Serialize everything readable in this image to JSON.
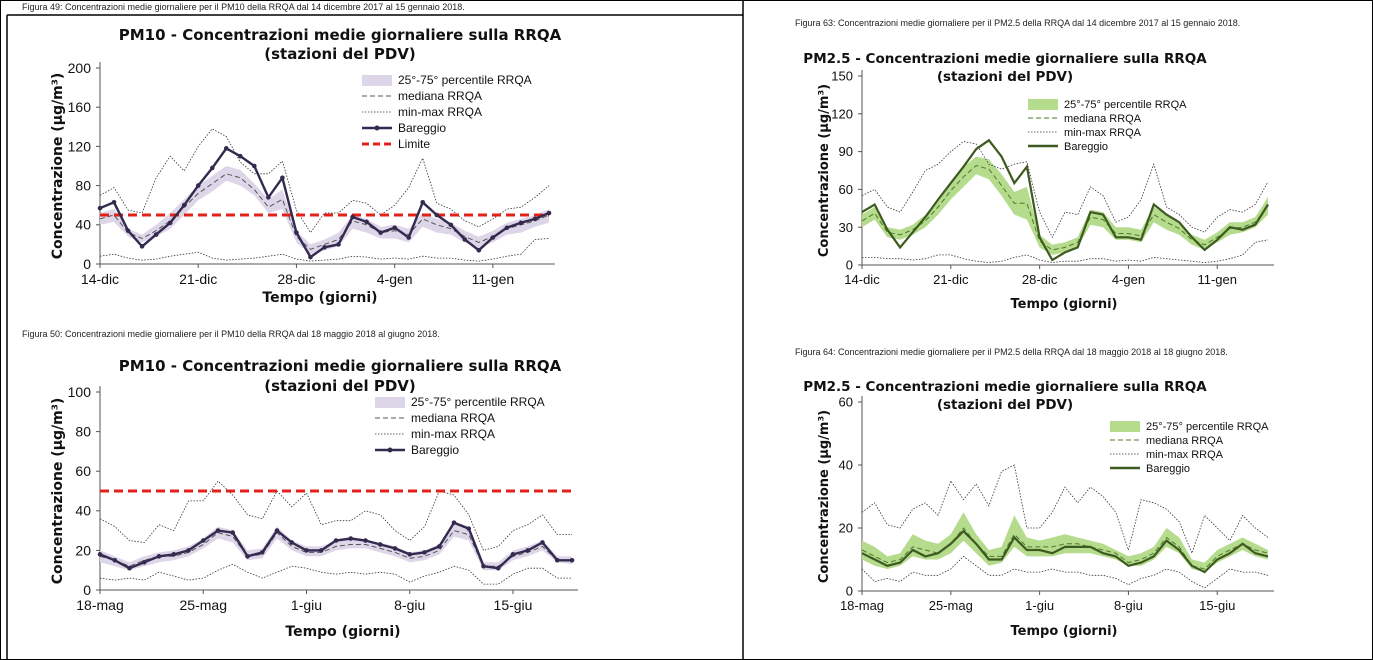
{
  "chart_data": [
    {
      "type": "line",
      "caption": "Figura 49: Concentrazioni medie giornaliere per il PM10 della RRQA dal 14 dicembre 2017 al 15 gennaio 2018.",
      "title": "PM10 - Concentrazioni medie giornaliere sulla RRQA",
      "subtitle": "(stazioni del PDV)",
      "xlabel": "Tempo (giorni)",
      "ylabel": "Concentrazione (µg/m³)",
      "ylim": [
        0,
        200
      ],
      "yticks": [
        0,
        40,
        80,
        120,
        160,
        200
      ],
      "xticks": [
        {
          "i": 0,
          "label": "14-dic"
        },
        {
          "i": 7,
          "label": "21-dic"
        },
        {
          "i": 14,
          "label": "28-dic"
        },
        {
          "i": 21,
          "label": "4-gen"
        },
        {
          "i": 28,
          "label": "11-gen"
        }
      ],
      "n": 33,
      "legend": {
        "iqr": "25°-75° percentile RRQA",
        "median": "mediana RRQA",
        "minmax": "min-max RRQA",
        "station": "Bareggio",
        "limit": "Limite"
      },
      "limit": 50,
      "colors": {
        "band": "#ddd6e8",
        "station": "#332a4f",
        "median": "#555555",
        "minmax": "#333333",
        "limit": "#e32119"
      },
      "series": {
        "Bareggio": [
          57,
          63,
          34,
          18,
          30,
          42,
          60,
          80,
          98,
          118,
          110,
          100,
          68,
          88,
          32,
          7,
          17,
          20,
          48,
          43,
          32,
          37,
          27,
          63,
          50,
          40,
          25,
          14,
          27,
          37,
          42,
          46,
          52
        ],
        "p25": [
          40,
          43,
          28,
          22,
          28,
          36,
          50,
          65,
          74,
          85,
          80,
          70,
          52,
          56,
          22,
          10,
          14,
          18,
          36,
          32,
          26,
          26,
          22,
          38,
          32,
          30,
          22,
          16,
          22,
          30,
          32,
          38,
          42
        ],
        "p75": [
          52,
          56,
          36,
          30,
          40,
          52,
          66,
          80,
          90,
          100,
          96,
          82,
          66,
          76,
          34,
          20,
          25,
          32,
          50,
          46,
          38,
          40,
          36,
          52,
          46,
          42,
          34,
          28,
          34,
          42,
          46,
          50,
          56
        ],
        "median": [
          46,
          50,
          32,
          26,
          34,
          44,
          58,
          72,
          82,
          92,
          88,
          76,
          58,
          66,
          28,
          15,
          20,
          25,
          44,
          40,
          32,
          34,
          30,
          46,
          40,
          36,
          28,
          22,
          28,
          36,
          40,
          44,
          50
        ],
        "min": [
          8,
          10,
          6,
          4,
          5,
          8,
          10,
          12,
          6,
          4,
          5,
          6,
          8,
          10,
          5,
          3,
          4,
          5,
          8,
          7,
          5,
          6,
          5,
          8,
          6,
          6,
          4,
          3,
          5,
          8,
          10,
          25,
          26
        ],
        "max": [
          70,
          78,
          55,
          52,
          88,
          110,
          95,
          120,
          138,
          130,
          104,
          92,
          92,
          105,
          55,
          32,
          52,
          52,
          65,
          62,
          50,
          60,
          78,
          108,
          62,
          56,
          44,
          38,
          46,
          56,
          58,
          68,
          80
        ]
      }
    },
    {
      "type": "line",
      "caption": "Figura 63: Concentrazioni medie giornaliere per il PM2.5 della RRQA dal 14 dicembre 2017 al 15 gennaio 2018.",
      "title": "PM2.5 - Concentrazioni medie giornaliere sulla RRQA",
      "subtitle": "(stazioni del PDV)",
      "xlabel": "Tempo (giorni)",
      "ylabel": "Concentrazione (µg/m³)",
      "ylim": [
        0,
        150
      ],
      "yticks": [
        0,
        30,
        60,
        90,
        120,
        150
      ],
      "xticks": [
        {
          "i": 0,
          "label": "14-dic"
        },
        {
          "i": 7,
          "label": "21-dic"
        },
        {
          "i": 14,
          "label": "28-dic"
        },
        {
          "i": 21,
          "label": "4-gen"
        },
        {
          "i": 28,
          "label": "11-gen"
        }
      ],
      "n": 33,
      "legend": {
        "iqr": "25°-75° percentile RRQA",
        "median": "mediana RRQA",
        "minmax": "min-max RRQA",
        "station": "Bareggio"
      },
      "colors": {
        "band": "#b5db8d",
        "station": "#3e5a20",
        "median": "#4f7a2a",
        "minmax": "#333333"
      },
      "series": {
        "Bareggio": [
          42,
          48,
          28,
          14,
          26,
          38,
          52,
          65,
          78,
          92,
          99,
          86,
          65,
          78,
          22,
          4,
          10,
          14,
          42,
          40,
          22,
          22,
          20,
          48,
          40,
          34,
          22,
          12,
          20,
          30,
          28,
          32,
          48
        ],
        "p25": [
          30,
          36,
          22,
          20,
          24,
          30,
          40,
          52,
          62,
          72,
          68,
          55,
          40,
          36,
          14,
          8,
          10,
          14,
          32,
          30,
          20,
          20,
          18,
          34,
          28,
          24,
          16,
          12,
          18,
          24,
          26,
          30,
          40
        ],
        "p75": [
          40,
          46,
          30,
          28,
          32,
          40,
          52,
          66,
          78,
          86,
          84,
          72,
          58,
          62,
          24,
          16,
          18,
          22,
          44,
          42,
          30,
          30,
          28,
          46,
          40,
          34,
          24,
          20,
          26,
          34,
          34,
          38,
          54
        ],
        "median": [
          35,
          41,
          26,
          24,
          28,
          35,
          46,
          59,
          70,
          79,
          76,
          63,
          49,
          49,
          19,
          12,
          14,
          18,
          38,
          36,
          25,
          25,
          23,
          40,
          34,
          29,
          20,
          16,
          22,
          29,
          30,
          34,
          47
        ],
        "min": [
          6,
          6,
          5,
          5,
          4,
          5,
          8,
          8,
          5,
          3,
          2,
          3,
          6,
          8,
          4,
          2,
          3,
          3,
          5,
          5,
          3,
          4,
          3,
          6,
          5,
          4,
          3,
          2,
          3,
          5,
          8,
          18,
          20
        ],
        "max": [
          55,
          60,
          46,
          42,
          58,
          75,
          80,
          90,
          98,
          96,
          80,
          76,
          80,
          82,
          42,
          22,
          42,
          40,
          62,
          55,
          34,
          38,
          52,
          80,
          46,
          40,
          30,
          26,
          38,
          44,
          42,
          48,
          66
        ]
      }
    },
    {
      "type": "line",
      "caption": "Figura 50: Concentrazioni medie giornaliere per il PM10 della RRQA dal 18 maggio 2018 al giugno 2018.",
      "title": "PM10 - Concentrazioni medie giornaliere sulla RRQA",
      "subtitle": "(stazioni del PDV)",
      "xlabel": "Tempo (giorni)",
      "ylabel": "Concentrazione (µg/m³)",
      "ylim": [
        0,
        100
      ],
      "yticks": [
        0,
        20,
        40,
        60,
        80,
        100
      ],
      "xticks": [
        {
          "i": 0,
          "label": "18-mag"
        },
        {
          "i": 7,
          "label": "25-mag"
        },
        {
          "i": 14,
          "label": "1-giu"
        },
        {
          "i": 21,
          "label": "8-giu"
        },
        {
          "i": 28,
          "label": "15-giu"
        }
      ],
      "n": 33,
      "legend": {
        "iqr": "25°-75° percentile RRQA",
        "median": "mediana RRQA",
        "minmax": "min-max RRQA",
        "station": "Bareggio"
      },
      "limit": 50,
      "colors": {
        "band": "#ddd6e8",
        "station": "#332a4f",
        "median": "#555555",
        "minmax": "#333333",
        "limit": "#e32119"
      },
      "series": {
        "Bareggio": [
          18,
          15,
          11,
          14,
          17,
          18,
          20,
          25,
          30,
          29,
          17,
          19,
          30,
          24,
          20,
          20,
          25,
          26,
          25,
          23,
          21,
          18,
          19,
          22,
          34,
          31,
          12,
          11,
          18,
          20,
          24,
          15,
          15
        ],
        "p25": [
          14,
          12,
          10,
          12,
          14,
          15,
          17,
          21,
          26,
          24,
          15,
          16,
          26,
          20,
          17,
          17,
          20,
          21,
          21,
          19,
          17,
          14,
          15,
          18,
          27,
          25,
          10,
          10,
          15,
          17,
          20,
          14,
          13
        ],
        "p75": [
          20,
          17,
          14,
          17,
          19,
          20,
          22,
          26,
          32,
          30,
          20,
          21,
          32,
          25,
          22,
          22,
          25,
          26,
          25,
          24,
          22,
          19,
          20,
          23,
          33,
          32,
          14,
          14,
          20,
          22,
          25,
          17,
          17
        ],
        "median": [
          17,
          15,
          12,
          15,
          17,
          17,
          19,
          23,
          29,
          27,
          17,
          18,
          29,
          22,
          19,
          19,
          22,
          23,
          23,
          21,
          19,
          16,
          17,
          20,
          30,
          28,
          12,
          12,
          17,
          19,
          22,
          15,
          15
        ],
        "min": [
          6,
          5,
          6,
          5,
          9,
          7,
          5,
          6,
          10,
          13,
          9,
          6,
          9,
          12,
          11,
          9,
          8,
          9,
          8,
          9,
          8,
          4,
          7,
          9,
          12,
          10,
          3,
          3,
          8,
          11,
          11,
          6,
          6
        ],
        "max": [
          36,
          32,
          25,
          24,
          33,
          30,
          45,
          45,
          55,
          48,
          38,
          36,
          50,
          42,
          49,
          33,
          35,
          35,
          40,
          38,
          30,
          25,
          32,
          50,
          48,
          38,
          20,
          22,
          30,
          33,
          38,
          28,
          28
        ]
      }
    },
    {
      "type": "line",
      "caption": "Figura 64: Concentrazioni medie giornaliere per il PM2.5 della RRQA dal 18 maggio 2018 al 18 giugno 2018.",
      "title": "PM2.5 - Concentrazioni medie giornaliere sulla RRQA",
      "subtitle": "(stazioni del PDV)",
      "xlabel": "Tempo (giorni)",
      "ylabel": "Concentrazione (µg/m³)",
      "ylim": [
        0,
        60
      ],
      "yticks": [
        0,
        20,
        40,
        60
      ],
      "xticks": [
        {
          "i": 0,
          "label": "18-mag"
        },
        {
          "i": 7,
          "label": "25-mag"
        },
        {
          "i": 14,
          "label": "1-giu"
        },
        {
          "i": 21,
          "label": "8-giu"
        },
        {
          "i": 28,
          "label": "15-giu"
        }
      ],
      "n": 33,
      "legend": {
        "iqr": "25°-75° percentile RRQA",
        "median": "mediana RRQA",
        "minmax": "min-max RRQA",
        "station": "Bareggio"
      },
      "colors": {
        "band": "#b5db8d",
        "station": "#3e5a20",
        "median": "#4f7a2a",
        "minmax": "#333333"
      },
      "series": {
        "Bareggio": [
          12,
          10,
          8,
          9,
          13,
          11,
          12,
          15,
          19,
          15,
          10,
          10,
          17,
          13,
          13,
          12,
          14,
          14,
          14,
          12,
          11,
          8,
          9,
          11,
          16,
          13,
          8,
          6,
          10,
          12,
          15,
          12,
          11
        ],
        "p25": [
          10,
          8,
          7,
          8,
          11,
          10,
          10,
          12,
          16,
          12,
          8,
          9,
          14,
          11,
          11,
          11,
          12,
          12,
          12,
          11,
          10,
          8,
          8,
          10,
          14,
          12,
          7,
          6,
          9,
          11,
          13,
          11,
          10
        ],
        "p75": [
          16,
          14,
          11,
          12,
          18,
          16,
          15,
          18,
          25,
          18,
          13,
          14,
          24,
          17,
          16,
          17,
          18,
          17,
          16,
          15,
          13,
          11,
          12,
          14,
          20,
          17,
          10,
          9,
          13,
          15,
          17,
          15,
          13
        ],
        "median": [
          13,
          11,
          9,
          10,
          14,
          13,
          12,
          15,
          20,
          15,
          11,
          11,
          18,
          14,
          14,
          14,
          15,
          15,
          14,
          13,
          12,
          9,
          10,
          12,
          17,
          14,
          8,
          7,
          11,
          13,
          15,
          13,
          12
        ],
        "min": [
          7,
          3,
          4,
          3,
          6,
          5,
          5,
          7,
          11,
          8,
          5,
          5,
          7,
          6,
          6,
          7,
          6,
          6,
          5,
          5,
          4,
          2,
          4,
          5,
          7,
          6,
          3,
          1,
          4,
          7,
          6,
          6,
          5
        ],
        "max": [
          25,
          28,
          21,
          20,
          26,
          28,
          24,
          35,
          29,
          34,
          27,
          38,
          40,
          20,
          20,
          25,
          33,
          28,
          33,
          30,
          25,
          13,
          29,
          28,
          26,
          22,
          12,
          24,
          20,
          16,
          24,
          20,
          17
        ]
      }
    }
  ]
}
